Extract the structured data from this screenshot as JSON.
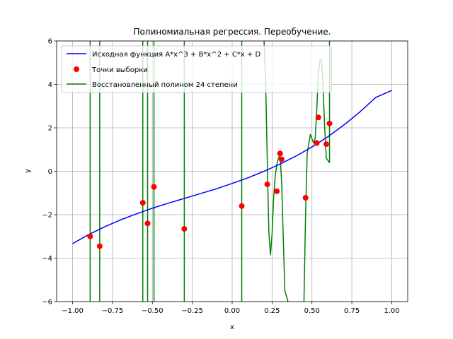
{
  "chart_data": {
    "type": "line",
    "title": "Полиномиальная регрессия. Переобучение.",
    "xlabel": "x",
    "ylabel": "y",
    "xlim": [
      -1.1,
      1.1
    ],
    "ylim": [
      -6,
      6
    ],
    "xticks": [
      -1.0,
      -0.75,
      -0.5,
      -0.25,
      0.0,
      0.25,
      0.5,
      0.75,
      1.0
    ],
    "xtick_labels": [
      "−1.00",
      "−0.75",
      "−0.50",
      "−0.25",
      "0.00",
      "0.25",
      "0.50",
      "0.75",
      "1.00"
    ],
    "yticks": [
      -6,
      -4,
      -2,
      0,
      2,
      4,
      6
    ],
    "ytick_labels": [
      "−6",
      "−4",
      "−2",
      "0",
      "2",
      "4",
      "6"
    ],
    "grid": true,
    "legend_position": "top-left",
    "series": [
      {
        "name": "Исходная функция A*x^3 + B*x^2 + C*x + D",
        "kind": "line",
        "color": "#0000ff",
        "x": [
          -1.0,
          -0.9,
          -0.8,
          -0.7,
          -0.6,
          -0.5,
          -0.4,
          -0.3,
          -0.2,
          -0.1,
          0.0,
          0.1,
          0.2,
          0.3,
          0.4,
          0.5,
          0.6,
          0.7,
          0.8,
          0.9,
          1.0
        ],
        "y": [
          -3.33,
          -2.92,
          -2.56,
          -2.24,
          -1.96,
          -1.7,
          -1.47,
          -1.25,
          -1.03,
          -0.81,
          -0.56,
          -0.3,
          0.0,
          0.33,
          0.7,
          1.12,
          1.59,
          2.13,
          2.73,
          3.4,
          3.72
        ]
      },
      {
        "name": "Точки выборки",
        "kind": "scatter",
        "color": "#ff0000",
        "x": [
          -0.89,
          -0.83,
          -0.56,
          -0.53,
          -0.49,
          -0.3,
          0.06,
          0.22,
          0.28,
          0.3,
          0.31,
          0.46,
          0.53,
          0.54,
          0.59,
          0.61
        ],
        "y": [
          -3.0,
          -3.45,
          -1.45,
          -2.4,
          -0.72,
          -2.65,
          -1.6,
          -0.6,
          -0.92,
          0.82,
          0.55,
          -1.22,
          1.3,
          2.48,
          1.25,
          2.2
        ]
      },
      {
        "name": "Восстановленный полином 24 степени",
        "kind": "line",
        "color": "#008000",
        "segments": [
          {
            "x": [
              -0.89,
              -0.89
            ],
            "y": [
              -6.0,
              6.0
            ]
          },
          {
            "x": [
              -0.83,
              -0.83
            ],
            "y": [
              -6.0,
              6.0
            ]
          },
          {
            "x": [
              -0.56,
              -0.56
            ],
            "y": [
              -6.0,
              6.0
            ]
          },
          {
            "x": [
              -0.53,
              -0.53
            ],
            "y": [
              -6.0,
              6.0
            ]
          },
          {
            "x": [
              -0.49,
              -0.49
            ],
            "y": [
              -6.0,
              6.0
            ]
          },
          {
            "x": [
              -0.3,
              -0.3
            ],
            "y": [
              -6.0,
              6.0
            ]
          },
          {
            "x": [
              0.06,
              0.06
            ],
            "y": [
              -6.0,
              6.0
            ]
          },
          {
            "x": [
              0.2,
              0.21,
              0.22,
              0.23,
              0.24,
              0.25,
              0.26,
              0.27,
              0.28,
              0.29,
              0.3,
              0.31,
              0.32,
              0.33,
              0.35
            ],
            "y": [
              6.0,
              4.0,
              0.5,
              -2.8,
              -3.85,
              -2.9,
              -1.2,
              -0.2,
              0.3,
              0.6,
              0.75,
              -0.5,
              -3.0,
              -5.5,
              -6.0
            ]
          },
          {
            "x": [
              0.45,
              0.46,
              0.47,
              0.49,
              0.51,
              0.52,
              0.53,
              0.54,
              0.55,
              0.56,
              0.57,
              0.58,
              0.59,
              0.6,
              0.61,
              0.61
            ],
            "y": [
              -6.0,
              -2.0,
              0.8,
              1.7,
              1.3,
              1.5,
              2.8,
              4.5,
              5.1,
              5.15,
              3.8,
              2.0,
              0.6,
              0.5,
              0.4,
              6.0
            ]
          }
        ]
      }
    ]
  }
}
